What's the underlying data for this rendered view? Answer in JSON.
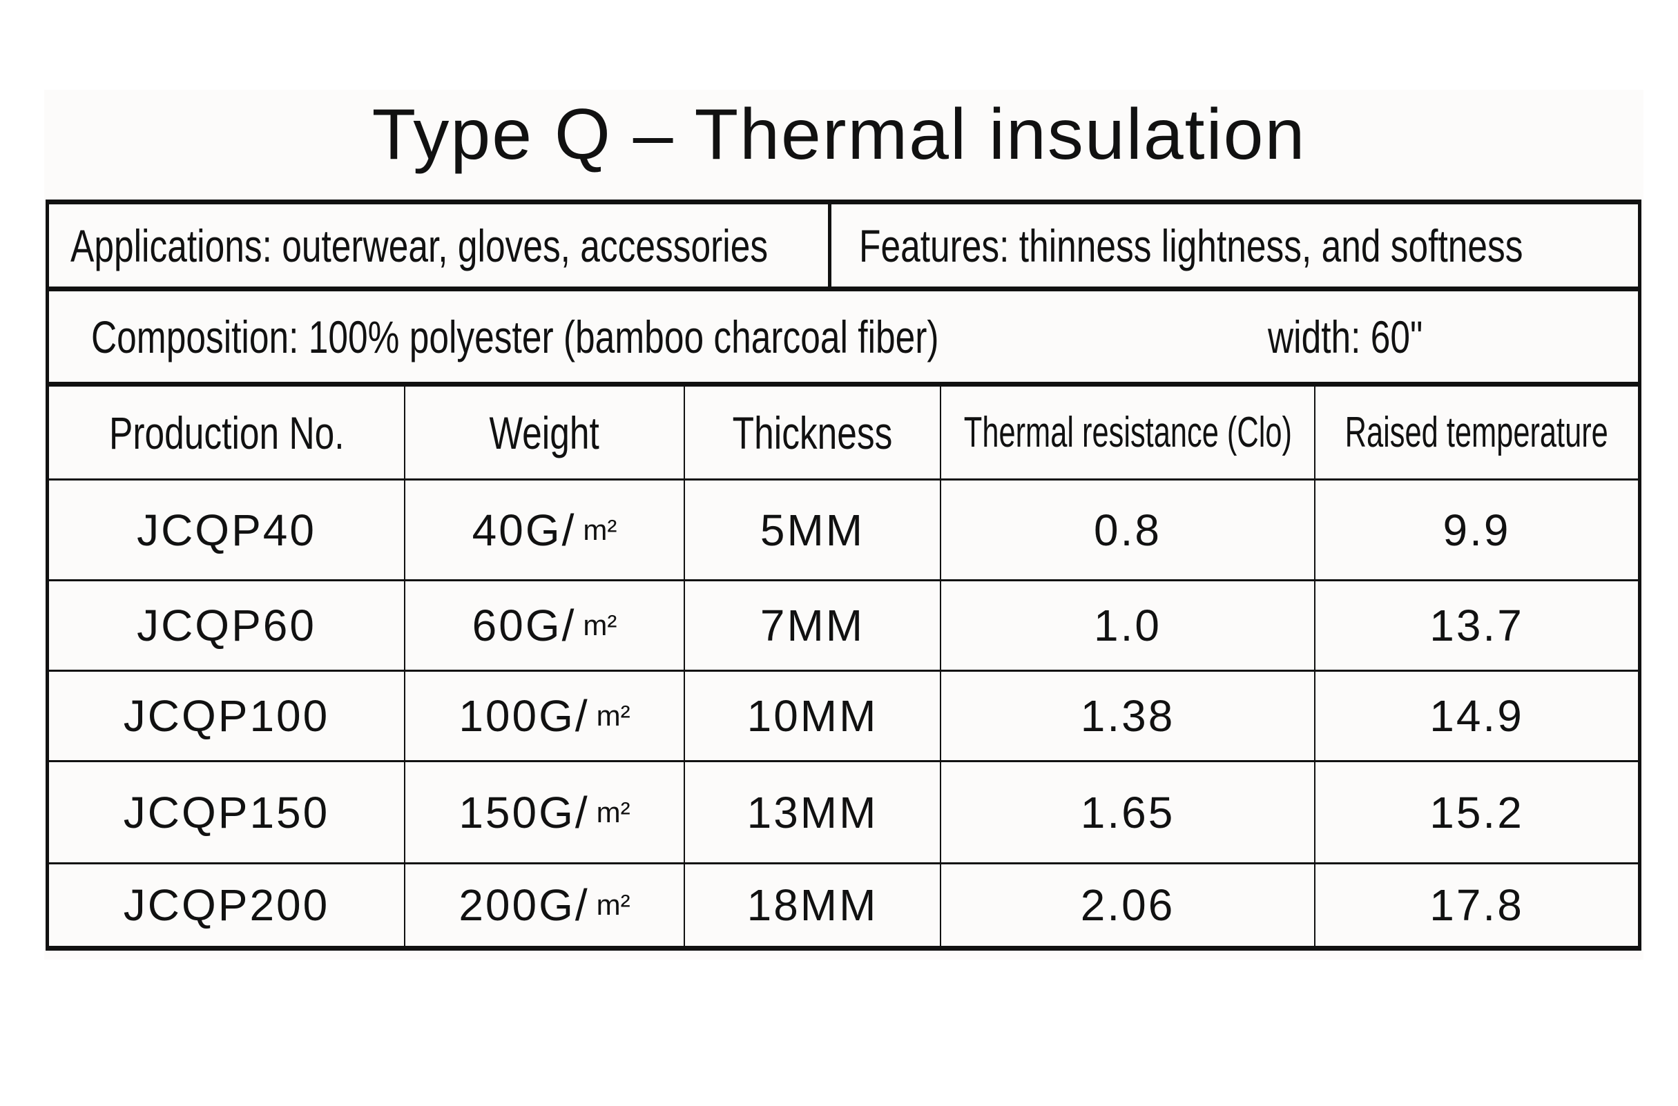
{
  "title": "Type Q – Thermal insulation",
  "info": {
    "applications": "Applications: outerwear, gloves, accessories",
    "features": "Features: thinness lightness, and softness",
    "composition": "Composition: 100% polyester (bamboo charcoal fiber)",
    "width": "width: 60\""
  },
  "table": {
    "headers": [
      "Production No.",
      "Weight",
      "Thickness",
      "Thermal resistance (Clo)",
      "Raised temperature"
    ],
    "rows": [
      {
        "no": "JCQP40",
        "weight": "40G/",
        "unit": "m²",
        "thickness": "5MM",
        "clo": "0.8",
        "temp": "9.9"
      },
      {
        "no": "JCQP60",
        "weight": "60G/",
        "unit": "m²",
        "thickness": "7MM",
        "clo": "1.0",
        "temp": "13.7"
      },
      {
        "no": "JCQP100",
        "weight": "100G/",
        "unit": "m²",
        "thickness": "10MM",
        "clo": "1.38",
        "temp": "14.9"
      },
      {
        "no": "JCQP150",
        "weight": "150G/",
        "unit": "m²",
        "thickness": "13MM",
        "clo": "1.65",
        "temp": "15.2"
      },
      {
        "no": "JCQP200",
        "weight": "200G/",
        "unit": "m²",
        "thickness": "18MM",
        "clo": "2.06",
        "temp": "17.8"
      }
    ]
  }
}
